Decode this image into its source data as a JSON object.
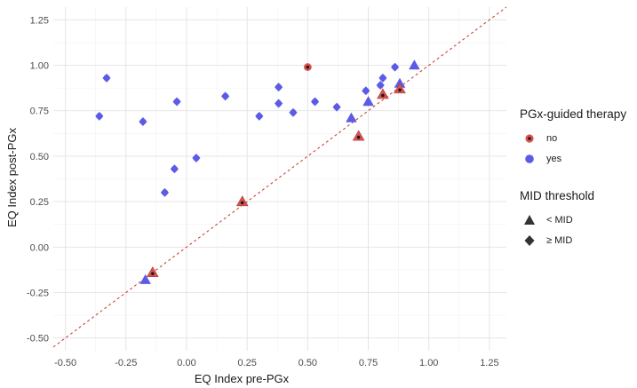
{
  "chart_data": {
    "type": "scatter",
    "title": "",
    "xlabel": "EQ Index pre-PGx",
    "ylabel": "EQ Index post-PGx",
    "xlim": [
      -0.55,
      1.32
    ],
    "ylim": [
      -0.57,
      1.32
    ],
    "x_ticks": [
      "-0.50",
      "-0.25",
      "0.00",
      "0.25",
      "0.50",
      "0.75",
      "1.00",
      "1.25"
    ],
    "y_ticks": [
      "-0.50",
      "-0.25",
      "0.00",
      "0.25",
      "0.50",
      "0.75",
      "1.00",
      "1.25"
    ],
    "x_tick_values": [
      -0.5,
      -0.25,
      0,
      0.25,
      0.5,
      0.75,
      1.0,
      1.25
    ],
    "y_tick_values": [
      -0.5,
      -0.25,
      0,
      0.25,
      0.5,
      0.75,
      1.0,
      1.25
    ],
    "grid": true,
    "reference_line": {
      "style": "dashed",
      "color": "#c0392b",
      "slope": 1,
      "intercept": 0
    },
    "colors": {
      "no": "#d9534f",
      "no_center": "#1a1a1a",
      "yes": "#5b5be6"
    },
    "legend_position": "right",
    "legend": {
      "color_title": "PGx-guided therapy",
      "color_items": [
        "no",
        "yes"
      ],
      "shape_title": "MID threshold",
      "shape_items": [
        "< MID",
        "≥ MID"
      ]
    },
    "points": [
      {
        "x": -0.36,
        "y": 0.72,
        "group": "yes",
        "mid": "ge"
      },
      {
        "x": -0.33,
        "y": 0.93,
        "group": "yes",
        "mid": "ge"
      },
      {
        "x": -0.18,
        "y": 0.69,
        "group": "yes",
        "mid": "ge"
      },
      {
        "x": -0.09,
        "y": 0.3,
        "group": "yes",
        "mid": "ge"
      },
      {
        "x": -0.05,
        "y": 0.43,
        "group": "yes",
        "mid": "ge"
      },
      {
        "x": -0.04,
        "y": 0.8,
        "group": "yes",
        "mid": "ge"
      },
      {
        "x": 0.04,
        "y": 0.49,
        "group": "yes",
        "mid": "ge"
      },
      {
        "x": 0.16,
        "y": 0.83,
        "group": "yes",
        "mid": "ge"
      },
      {
        "x": 0.3,
        "y": 0.72,
        "group": "yes",
        "mid": "ge"
      },
      {
        "x": 0.38,
        "y": 0.79,
        "group": "yes",
        "mid": "ge"
      },
      {
        "x": 0.38,
        "y": 0.88,
        "group": "yes",
        "mid": "ge"
      },
      {
        "x": 0.44,
        "y": 0.74,
        "group": "yes",
        "mid": "ge"
      },
      {
        "x": 0.53,
        "y": 0.8,
        "group": "yes",
        "mid": "ge"
      },
      {
        "x": 0.62,
        "y": 0.77,
        "group": "yes",
        "mid": "ge"
      },
      {
        "x": 0.74,
        "y": 0.86,
        "group": "yes",
        "mid": "ge"
      },
      {
        "x": 0.8,
        "y": 0.89,
        "group": "yes",
        "mid": "ge"
      },
      {
        "x": 0.81,
        "y": 0.93,
        "group": "yes",
        "mid": "ge"
      },
      {
        "x": 0.86,
        "y": 0.99,
        "group": "yes",
        "mid": "ge"
      },
      {
        "x": 0.5,
        "y": 0.99,
        "group": "no",
        "mid": "ge"
      },
      {
        "x": -0.17,
        "y": -0.18,
        "group": "yes",
        "mid": "lt"
      },
      {
        "x": 0.68,
        "y": 0.71,
        "group": "yes",
        "mid": "lt"
      },
      {
        "x": 0.75,
        "y": 0.8,
        "group": "yes",
        "mid": "lt"
      },
      {
        "x": 0.88,
        "y": 0.9,
        "group": "yes",
        "mid": "lt"
      },
      {
        "x": 0.94,
        "y": 1.0,
        "group": "yes",
        "mid": "lt"
      },
      {
        "x": -0.14,
        "y": -0.14,
        "group": "no",
        "mid": "lt"
      },
      {
        "x": 0.23,
        "y": 0.25,
        "group": "no",
        "mid": "lt"
      },
      {
        "x": 0.71,
        "y": 0.61,
        "group": "no",
        "mid": "lt"
      },
      {
        "x": 0.81,
        "y": 0.84,
        "group": "no",
        "mid": "lt"
      },
      {
        "x": 0.88,
        "y": 0.87,
        "group": "no",
        "mid": "lt"
      }
    ]
  }
}
